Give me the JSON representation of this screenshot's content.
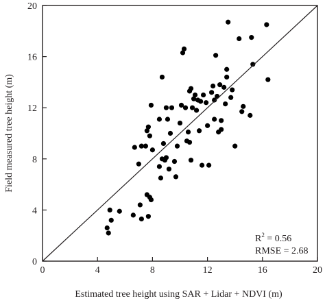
{
  "chart_data": {
    "type": "scatter",
    "xlabel": "Estimated tree height using SAR + Lidar + NDVI (m)",
    "ylabel": "Field measured tree height (m)",
    "xlim": [
      0,
      20
    ],
    "ylim": [
      0,
      20
    ],
    "xticks": [
      0,
      4,
      8,
      12,
      16,
      20
    ],
    "yticks": [
      0,
      4,
      8,
      12,
      16,
      20
    ],
    "grid": false,
    "reference_line": {
      "from": [
        0,
        0
      ],
      "to": [
        20,
        20
      ]
    },
    "annotations": {
      "r2_prefix": "R",
      "r2_exp": "2",
      "r2_value": " = 0.56",
      "rmse": "RMSE = 2.68"
    },
    "points": [
      {
        "x": 4.7,
        "y": 2.6
      },
      {
        "x": 4.8,
        "y": 2.2
      },
      {
        "x": 4.9,
        "y": 4.0
      },
      {
        "x": 5.0,
        "y": 3.2
      },
      {
        "x": 5.6,
        "y": 3.9
      },
      {
        "x": 6.6,
        "y": 3.6
      },
      {
        "x": 7.1,
        "y": 4.4
      },
      {
        "x": 7.2,
        "y": 3.3
      },
      {
        "x": 7.7,
        "y": 3.5
      },
      {
        "x": 7.6,
        "y": 5.2
      },
      {
        "x": 7.9,
        "y": 4.8
      },
      {
        "x": 7.8,
        "y": 5.0
      },
      {
        "x": 6.7,
        "y": 8.9
      },
      {
        "x": 7.0,
        "y": 7.6
      },
      {
        "x": 7.2,
        "y": 9.0
      },
      {
        "x": 7.5,
        "y": 9.0
      },
      {
        "x": 7.6,
        "y": 10.2
      },
      {
        "x": 7.7,
        "y": 10.5
      },
      {
        "x": 7.8,
        "y": 9.8
      },
      {
        "x": 8.0,
        "y": 8.7
      },
      {
        "x": 7.9,
        "y": 12.2
      },
      {
        "x": 8.5,
        "y": 7.4
      },
      {
        "x": 8.6,
        "y": 6.5
      },
      {
        "x": 8.7,
        "y": 8.0
      },
      {
        "x": 8.8,
        "y": 9.2
      },
      {
        "x": 8.9,
        "y": 7.9
      },
      {
        "x": 9.0,
        "y": 8.1
      },
      {
        "x": 8.5,
        "y": 11.1
      },
      {
        "x": 8.7,
        "y": 14.4
      },
      {
        "x": 9.0,
        "y": 12.0
      },
      {
        "x": 9.1,
        "y": 11.1
      },
      {
        "x": 9.3,
        "y": 10.0
      },
      {
        "x": 9.4,
        "y": 12.0
      },
      {
        "x": 9.2,
        "y": 7.2
      },
      {
        "x": 9.6,
        "y": 7.8
      },
      {
        "x": 9.7,
        "y": 6.6
      },
      {
        "x": 9.8,
        "y": 9.0
      },
      {
        "x": 10.0,
        "y": 10.8
      },
      {
        "x": 10.1,
        "y": 12.2
      },
      {
        "x": 10.2,
        "y": 16.3
      },
      {
        "x": 10.3,
        "y": 16.6
      },
      {
        "x": 10.4,
        "y": 12.0
      },
      {
        "x": 10.5,
        "y": 9.4
      },
      {
        "x": 10.6,
        "y": 10.1
      },
      {
        "x": 10.7,
        "y": 9.3
      },
      {
        "x": 10.8,
        "y": 7.9
      },
      {
        "x": 10.7,
        "y": 13.3
      },
      {
        "x": 10.8,
        "y": 13.5
      },
      {
        "x": 10.9,
        "y": 12.0
      },
      {
        "x": 11.0,
        "y": 12.7
      },
      {
        "x": 11.1,
        "y": 13.0
      },
      {
        "x": 11.2,
        "y": 11.8
      },
      {
        "x": 11.3,
        "y": 12.6
      },
      {
        "x": 11.4,
        "y": 10.2
      },
      {
        "x": 11.5,
        "y": 12.5
      },
      {
        "x": 11.6,
        "y": 7.5
      },
      {
        "x": 11.7,
        "y": 13.0
      },
      {
        "x": 11.9,
        "y": 12.4
      },
      {
        "x": 12.0,
        "y": 10.6
      },
      {
        "x": 12.1,
        "y": 7.5
      },
      {
        "x": 12.3,
        "y": 13.2
      },
      {
        "x": 12.4,
        "y": 13.7
      },
      {
        "x": 12.5,
        "y": 12.6
      },
      {
        "x": 12.5,
        "y": 11.1
      },
      {
        "x": 12.6,
        "y": 16.1
      },
      {
        "x": 12.7,
        "y": 12.9
      },
      {
        "x": 12.8,
        "y": 10.1
      },
      {
        "x": 12.9,
        "y": 13.8
      },
      {
        "x": 13.0,
        "y": 10.3
      },
      {
        "x": 13.0,
        "y": 11.0
      },
      {
        "x": 13.2,
        "y": 13.6
      },
      {
        "x": 13.3,
        "y": 12.3
      },
      {
        "x": 13.4,
        "y": 14.4
      },
      {
        "x": 13.4,
        "y": 15.0
      },
      {
        "x": 13.5,
        "y": 18.7
      },
      {
        "x": 13.7,
        "y": 12.8
      },
      {
        "x": 13.8,
        "y": 13.4
      },
      {
        "x": 14.0,
        "y": 9.0
      },
      {
        "x": 14.3,
        "y": 17.4
      },
      {
        "x": 14.5,
        "y": 11.7
      },
      {
        "x": 14.6,
        "y": 12.1
      },
      {
        "x": 15.1,
        "y": 11.4
      },
      {
        "x": 15.2,
        "y": 17.5
      },
      {
        "x": 15.3,
        "y": 15.4
      },
      {
        "x": 16.3,
        "y": 18.5
      },
      {
        "x": 16.4,
        "y": 14.2
      }
    ]
  }
}
